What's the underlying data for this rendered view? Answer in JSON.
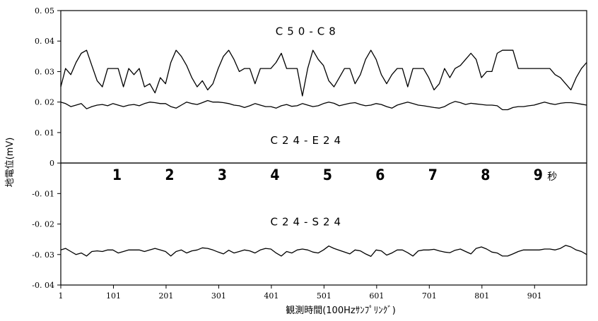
{
  "chart_data": {
    "type": "line",
    "xlabel": "観測時間(100Hzｻﾝﾌﾟﾘﾝｸﾞ)",
    "ylabel": "地電位(mV)",
    "xlim": [
      1,
      1000
    ],
    "ylim": [
      -0.04,
      0.05
    ],
    "x_ticks": [
      1,
      101,
      201,
      301,
      401,
      501,
      601,
      701,
      801,
      901
    ],
    "x_tick_labels": [
      "1",
      "101",
      "201",
      "301",
      "401",
      "501",
      "601",
      "701",
      "801",
      "901"
    ],
    "y_ticks": [
      0.05,
      0.04,
      0.03,
      0.02,
      0.01,
      0,
      -0.01,
      -0.02,
      -0.03,
      -0.04
    ],
    "y_tick_labels": [
      "0. 05",
      "0. 04",
      "0. 03",
      "0. 02",
      "0. 01",
      "0",
      "-0. 01",
      "-0. 02",
      "-0. 03",
      "-0. 04"
    ],
    "grid": false,
    "legend": "none",
    "series": [
      {
        "name": "C50-C8",
        "label_position": [
          470,
          0.042
        ],
        "x": [
          1,
          10,
          20,
          30,
          40,
          50,
          60,
          70,
          80,
          90,
          100,
          110,
          120,
          130,
          140,
          150,
          160,
          170,
          180,
          190,
          200,
          210,
          220,
          230,
          240,
          250,
          260,
          270,
          280,
          290,
          300,
          310,
          320,
          330,
          340,
          350,
          360,
          370,
          380,
          390,
          400,
          410,
          420,
          430,
          440,
          450,
          460,
          470,
          480,
          490,
          500,
          510,
          520,
          530,
          540,
          550,
          560,
          570,
          580,
          590,
          600,
          610,
          620,
          630,
          640,
          650,
          660,
          670,
          680,
          690,
          700,
          710,
          720,
          730,
          740,
          750,
          760,
          770,
          780,
          790,
          800,
          810,
          820,
          830,
          840,
          850,
          860,
          870,
          880,
          890,
          900,
          910,
          920,
          930,
          940,
          950,
          960,
          970,
          980,
          990,
          1000
        ],
        "values": [
          0.025,
          0.031,
          0.029,
          0.033,
          0.036,
          0.037,
          0.032,
          0.027,
          0.025,
          0.031,
          0.031,
          0.031,
          0.025,
          0.031,
          0.029,
          0.031,
          0.025,
          0.026,
          0.023,
          0.028,
          0.026,
          0.033,
          0.037,
          0.035,
          0.032,
          0.028,
          0.025,
          0.027,
          0.024,
          0.026,
          0.031,
          0.035,
          0.037,
          0.034,
          0.03,
          0.031,
          0.031,
          0.026,
          0.031,
          0.031,
          0.031,
          0.033,
          0.036,
          0.031,
          0.031,
          0.031,
          0.022,
          0.031,
          0.037,
          0.034,
          0.032,
          0.027,
          0.025,
          0.028,
          0.031,
          0.031,
          0.026,
          0.029,
          0.034,
          0.037,
          0.034,
          0.029,
          0.026,
          0.029,
          0.031,
          0.031,
          0.025,
          0.031,
          0.031,
          0.031,
          0.028,
          0.024,
          0.026,
          0.031,
          0.028,
          0.031,
          0.032,
          0.034,
          0.036,
          0.034,
          0.028,
          0.03,
          0.03,
          0.036,
          0.037,
          0.037,
          0.037,
          0.031,
          0.031,
          0.031,
          0.031,
          0.031,
          0.031,
          0.031,
          0.029,
          0.028,
          0.026,
          0.024,
          0.028,
          0.031,
          0.033
        ]
      },
      {
        "name": "C24-E24",
        "label_position": [
          470,
          0.0063
        ],
        "x": [
          1,
          10,
          20,
          30,
          40,
          50,
          60,
          70,
          80,
          90,
          100,
          110,
          120,
          130,
          140,
          150,
          160,
          170,
          180,
          190,
          200,
          210,
          220,
          230,
          240,
          250,
          260,
          270,
          280,
          290,
          300,
          310,
          320,
          330,
          340,
          350,
          360,
          370,
          380,
          390,
          400,
          410,
          420,
          430,
          440,
          450,
          460,
          470,
          480,
          490,
          500,
          510,
          520,
          530,
          540,
          550,
          560,
          570,
          580,
          590,
          600,
          610,
          620,
          630,
          640,
          650,
          660,
          670,
          680,
          690,
          700,
          710,
          720,
          730,
          740,
          750,
          760,
          770,
          780,
          790,
          800,
          810,
          820,
          830,
          840,
          850,
          860,
          870,
          880,
          890,
          900,
          910,
          920,
          930,
          940,
          950,
          960,
          970,
          980,
          990,
          1000
        ],
        "values": [
          0.02,
          0.0195,
          0.0185,
          0.019,
          0.0195,
          0.0178,
          0.0185,
          0.019,
          0.0192,
          0.0188,
          0.0195,
          0.019,
          0.0185,
          0.019,
          0.0192,
          0.0188,
          0.0195,
          0.02,
          0.0198,
          0.0195,
          0.0195,
          0.0185,
          0.018,
          0.019,
          0.02,
          0.0195,
          0.0192,
          0.0198,
          0.0205,
          0.02,
          0.02,
          0.0198,
          0.0195,
          0.019,
          0.0188,
          0.0182,
          0.0188,
          0.0195,
          0.019,
          0.0185,
          0.0185,
          0.018,
          0.0188,
          0.0192,
          0.0186,
          0.0188,
          0.0195,
          0.019,
          0.0185,
          0.0188,
          0.0195,
          0.02,
          0.0196,
          0.0188,
          0.0192,
          0.0196,
          0.0198,
          0.0192,
          0.0188,
          0.019,
          0.0195,
          0.0192,
          0.0185,
          0.018,
          0.019,
          0.0195,
          0.02,
          0.0195,
          0.019,
          0.0188,
          0.0185,
          0.0182,
          0.018,
          0.0185,
          0.0195,
          0.0202,
          0.0198,
          0.0192,
          0.0196,
          0.0194,
          0.0192,
          0.019,
          0.019,
          0.0188,
          0.0175,
          0.0175,
          0.0182,
          0.0185,
          0.0185,
          0.0188,
          0.019,
          0.0195,
          0.02,
          0.0195,
          0.0192,
          0.0196,
          0.0198,
          0.0198,
          0.0196,
          0.0193,
          0.019
        ]
      },
      {
        "name": "C24-S24",
        "label_position": [
          470,
          -0.0205
        ],
        "x": [
          1,
          10,
          20,
          30,
          40,
          50,
          60,
          70,
          80,
          90,
          100,
          110,
          120,
          130,
          140,
          150,
          160,
          170,
          180,
          190,
          200,
          210,
          220,
          230,
          240,
          250,
          260,
          270,
          280,
          290,
          300,
          310,
          320,
          330,
          340,
          350,
          360,
          370,
          380,
          390,
          400,
          410,
          420,
          430,
          440,
          450,
          460,
          470,
          480,
          490,
          500,
          510,
          520,
          530,
          540,
          550,
          560,
          570,
          580,
          590,
          600,
          610,
          620,
          630,
          640,
          650,
          660,
          670,
          680,
          690,
          700,
          710,
          720,
          730,
          740,
          750,
          760,
          770,
          780,
          790,
          800,
          810,
          820,
          830,
          840,
          850,
          860,
          870,
          880,
          890,
          900,
          910,
          920,
          930,
          940,
          950,
          960,
          970,
          980,
          990,
          1000
        ],
        "values": [
          -0.0285,
          -0.028,
          -0.029,
          -0.03,
          -0.0295,
          -0.0305,
          -0.029,
          -0.0288,
          -0.029,
          -0.0285,
          -0.0285,
          -0.0295,
          -0.029,
          -0.0285,
          -0.0285,
          -0.0285,
          -0.029,
          -0.0285,
          -0.028,
          -0.0285,
          -0.029,
          -0.0305,
          -0.029,
          -0.0285,
          -0.0295,
          -0.0288,
          -0.0285,
          -0.0278,
          -0.028,
          -0.0285,
          -0.0292,
          -0.0298,
          -0.0286,
          -0.0295,
          -0.029,
          -0.0285,
          -0.0288,
          -0.0295,
          -0.0285,
          -0.028,
          -0.0282,
          -0.0295,
          -0.0305,
          -0.029,
          -0.0295,
          -0.0285,
          -0.0282,
          -0.0285,
          -0.0292,
          -0.0295,
          -0.0285,
          -0.0272,
          -0.028,
          -0.0286,
          -0.0292,
          -0.0298,
          -0.0285,
          -0.0288,
          -0.0298,
          -0.0306,
          -0.0285,
          -0.0288,
          -0.0302,
          -0.0295,
          -0.0285,
          -0.0285,
          -0.0294,
          -0.0305,
          -0.0288,
          -0.0285,
          -0.0285,
          -0.0283,
          -0.0288,
          -0.0292,
          -0.0294,
          -0.0286,
          -0.0282,
          -0.029,
          -0.0298,
          -0.028,
          -0.0275,
          -0.0282,
          -0.0292,
          -0.0295,
          -0.0305,
          -0.0305,
          -0.0298,
          -0.029,
          -0.0285,
          -0.0285,
          -0.0285,
          -0.0285,
          -0.0282,
          -0.0282,
          -0.0285,
          -0.028,
          -0.027,
          -0.0275,
          -0.0285,
          -0.029,
          -0.03
        ]
      }
    ],
    "second_markers": {
      "labels": [
        "1",
        "2",
        "3",
        "4",
        "5",
        "6",
        "7",
        "8",
        "9"
      ],
      "positions": [
        101,
        201,
        301,
        401,
        501,
        601,
        701,
        801,
        901
      ],
      "unit": "秒"
    }
  }
}
